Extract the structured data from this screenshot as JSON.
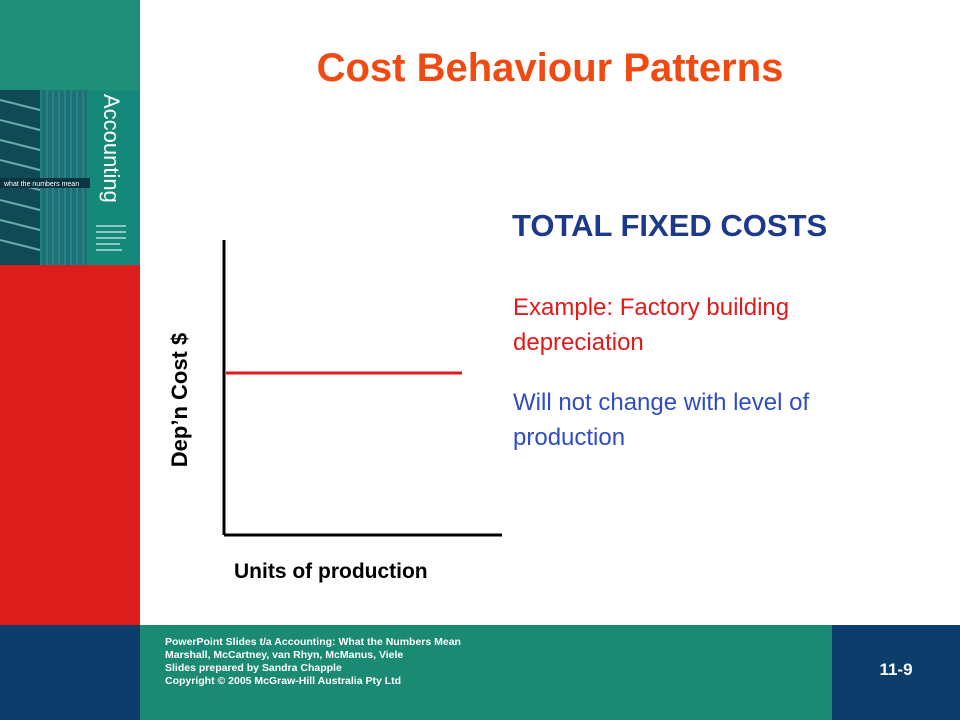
{
  "slide": {
    "title": "Cost Behaviour Patterns",
    "subtitle": "TOTAL FIXED COSTS",
    "example_text": "Example: Factory building depreciation",
    "note_text": "Will not change with level of production",
    "slide_number": "11-9"
  },
  "book_cover": {
    "title": "Accounting",
    "tagline": "what the numbers mean"
  },
  "chart_data": {
    "type": "line",
    "xlabel": "Units of production",
    "ylabel": "Dep’n Cost $",
    "series": [
      {
        "color": "#e01a1a",
        "shape": "horizontal"
      }
    ]
  },
  "footer": {
    "line1": "PowerPoint Slides t/a Accounting: What the Numbers Mean",
    "line2": "Marshall, McCartney, van Rhyn, McManus, Viele",
    "line3": "Slides prepared by Sandra Chapple",
    "line4": "Copyright © 2005 McGraw-Hill Australia Pty Ltd"
  },
  "colors": {
    "title": "#f04a12",
    "subtitle": "#1d3a8a",
    "example": "#e01a1a",
    "note": "#2f4cc0",
    "teal": "#1a8a72",
    "red": "#dd1c1c",
    "navy": "#0d3d6a"
  }
}
